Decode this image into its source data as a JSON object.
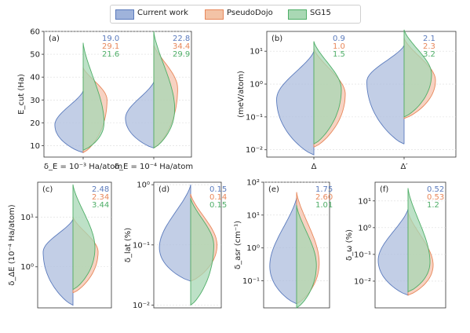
{
  "colors": {
    "current": "#5b7bbd",
    "pseudodojo": "#e8875a",
    "sg15": "#4fae68"
  },
  "legend": [
    "Current work",
    "PseudoDojo",
    "SG15"
  ],
  "chart_data": [
    {
      "panel": "(a)",
      "type": "violin",
      "yscale": "linear",
      "ylim": [
        5,
        60
      ],
      "yticks": [
        "10",
        "20",
        "30",
        "40",
        "50",
        "60"
      ],
      "ylabel": "E_cut (Ha)",
      "groups": [
        {
          "label": "δ_E = 10⁻³ Ha/atom",
          "stats": [
            "19.0",
            "29.1",
            "21.6"
          ],
          "series": [
            {
              "name": "Current work",
              "median": 19,
              "min": 7,
              "max": 34,
              "peak": 19,
              "shape": 0.85
            },
            {
              "name": "PseudoDojo",
              "median": 29,
              "min": 7,
              "max": 44,
              "peak": 30,
              "shape": 0.8
            },
            {
              "name": "SG15",
              "median": 20,
              "min": 8,
              "max": 55,
              "peak": 20,
              "shape": 0.85
            }
          ]
        },
        {
          "label": "δ_E = 10⁻⁴ Ha/atom",
          "stats": [
            "22.8",
            "34.4",
            "29.9"
          ],
          "series": [
            {
              "name": "Current work",
              "median": 22,
              "min": 9,
              "max": 38,
              "peak": 22,
              "shape": 0.85
            },
            {
              "name": "PseudoDojo",
              "median": 36,
              "min": 9,
              "max": 54,
              "peak": 35,
              "shape": 0.8
            },
            {
              "name": "SG15",
              "median": 26,
              "min": 9,
              "max": 60,
              "peak": 26,
              "shape": 0.85
            }
          ]
        }
      ]
    },
    {
      "panel": "(b)",
      "type": "violin",
      "yscale": "log",
      "ylim": [
        0.006,
        40
      ],
      "yticks": [
        "10⁻²",
        "10⁻¹",
        "10⁰",
        "10¹"
      ],
      "ylabel": "(meV/atom)",
      "groups": [
        {
          "label": "Δ",
          "stats": [
            "0.9",
            "1.0",
            "1.5"
          ],
          "series": [
            {
              "name": "Current work",
              "median": 0.35,
              "min": 0.007,
              "max": 10,
              "peak": 0.35,
              "shape": 0.85
            },
            {
              "name": "PseudoDojo",
              "median": 0.5,
              "min": 0.012,
              "max": 12,
              "peak": 0.5,
              "shape": 0.85
            },
            {
              "name": "SG15",
              "median": 0.7,
              "min": 0.015,
              "max": 20,
              "peak": 0.7,
              "shape": 0.85
            }
          ]
        },
        {
          "label": "Δ′",
          "stats": [
            "2.1",
            "2.3",
            "3.2"
          ],
          "series": [
            {
              "name": "Current work",
              "median": 1.2,
              "min": 0.015,
              "max": 15,
              "peak": 1.2,
              "shape": 0.85
            },
            {
              "name": "PseudoDojo",
              "median": 1.3,
              "min": 0.09,
              "max": 25,
              "peak": 1.3,
              "shape": 0.85
            },
            {
              "name": "SG15",
              "median": 2.0,
              "min": 0.1,
              "max": 45,
              "peak": 2.0,
              "shape": 0.85
            }
          ]
        }
      ]
    },
    {
      "panel": "(c)",
      "type": "violin",
      "yscale": "log",
      "ylim": [
        0.15,
        50
      ],
      "yticks": [
        "10⁰",
        "10¹"
      ],
      "ylabel": "δ_ΔE (10⁻⁴ Ha/atom)",
      "groups": [
        {
          "label": "",
          "stats": [
            "2.48",
            "2.34",
            "3.44"
          ],
          "series": [
            {
              "name": "Current work",
              "median": 2.0,
              "min": 0.17,
              "max": 9,
              "peak": 2.0,
              "shape": 0.85
            },
            {
              "name": "PseudoDojo",
              "median": 2.0,
              "min": 0.3,
              "max": 10,
              "peak": 2.0,
              "shape": 0.85
            },
            {
              "name": "SG15",
              "median": 2.4,
              "min": 0.35,
              "max": 45,
              "peak": 2.4,
              "shape": 0.85
            }
          ]
        }
      ]
    },
    {
      "panel": "(d)",
      "type": "violin",
      "yscale": "log",
      "ylim": [
        0.009,
        1.1
      ],
      "yticks": [
        "10⁻²",
        "10⁻¹",
        "10⁰"
      ],
      "ylabel": "δ_lat (%)",
      "groups": [
        {
          "label": "",
          "stats": [
            "0.15",
            "0.14",
            "0.15"
          ],
          "series": [
            {
              "name": "Current work",
              "median": 0.09,
              "min": 0.025,
              "max": 1.0,
              "peak": 0.09,
              "shape": 0.85
            },
            {
              "name": "PseudoDojo",
              "median": 0.1,
              "min": 0.025,
              "max": 0.7,
              "peak": 0.1,
              "shape": 0.85
            },
            {
              "name": "SG15",
              "median": 0.1,
              "min": 0.01,
              "max": 0.6,
              "peak": 0.1,
              "shape": 0.85
            }
          ]
        }
      ]
    },
    {
      "panel": "(e)",
      "type": "violin",
      "yscale": "log",
      "ylim": [
        0.015,
        100
      ],
      "yticks": [
        "10⁻¹",
        "10⁰",
        "10¹",
        "10²"
      ],
      "ylabel": "δ_asr (cm⁻¹)",
      "groups": [
        {
          "label": "",
          "stats": [
            "1.75",
            "2.60",
            "1.01"
          ],
          "series": [
            {
              "name": "Current work",
              "median": 0.28,
              "min": 0.02,
              "max": 35,
              "peak": 0.28,
              "shape": 0.85
            },
            {
              "name": "PseudoDojo",
              "median": 0.35,
              "min": 0.02,
              "max": 50,
              "peak": 0.35,
              "shape": 0.85
            },
            {
              "name": "SG15",
              "median": 0.3,
              "min": 0.015,
              "max": 20,
              "peak": 0.3,
              "shape": 0.85
            }
          ]
        }
      ]
    },
    {
      "panel": "(f)",
      "type": "violin",
      "yscale": "log",
      "ylim": [
        0.001,
        50
      ],
      "yticks": [
        "10⁻²",
        "10⁻¹",
        "10⁰",
        "10¹"
      ],
      "ylabel": "δ_ω (%)",
      "groups": [
        {
          "label": "",
          "stats": [
            "0.52",
            "0.53",
            "1.2"
          ],
          "series": [
            {
              "name": "Current work",
              "median": 0.06,
              "min": 0.003,
              "max": 5,
              "peak": 0.06,
              "shape": 0.85
            },
            {
              "name": "PseudoDojo",
              "median": 0.04,
              "min": 0.003,
              "max": 4,
              "peak": 0.04,
              "shape": 0.85
            },
            {
              "name": "SG15",
              "median": 0.05,
              "min": 0.004,
              "max": 30,
              "peak": 0.05,
              "shape": 0.85
            }
          ]
        }
      ]
    }
  ]
}
